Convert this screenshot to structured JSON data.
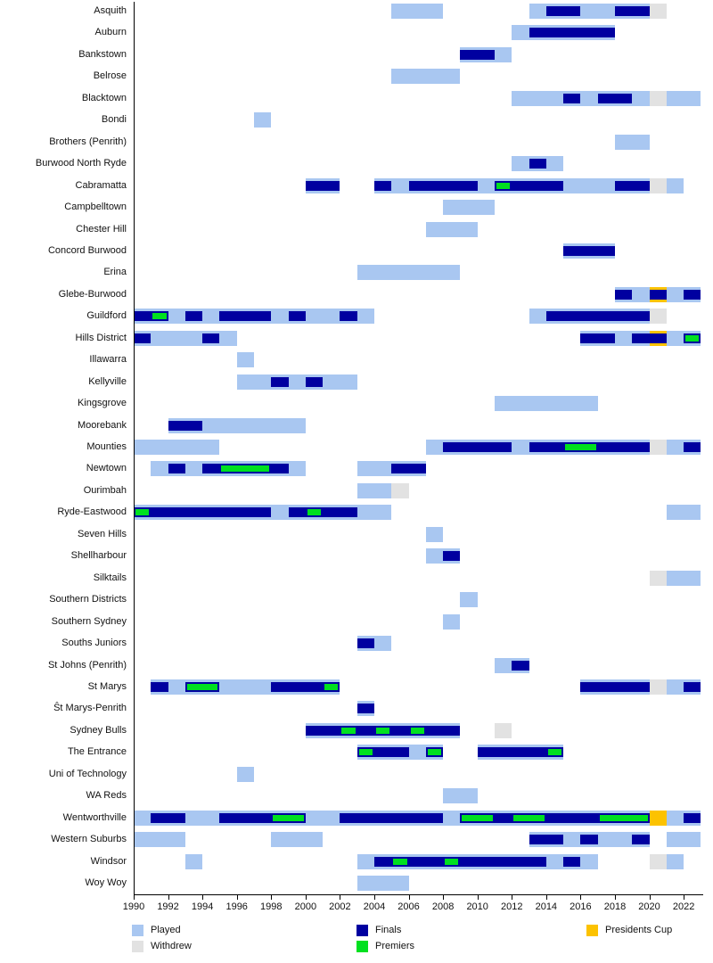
{
  "chart_data": {
    "type": "bar",
    "subtype": "gantt-participation-timeline",
    "title": "",
    "x_axis": {
      "start": 1990,
      "end": 2023,
      "ticks": [
        1990,
        1992,
        1994,
        1996,
        1998,
        2000,
        2002,
        2004,
        2006,
        2008,
        2010,
        2012,
        2014,
        2016,
        2018,
        2020,
        2022
      ]
    },
    "colors": {
      "played": "#a9c7f1",
      "finals": "#0000a0",
      "premiers": "#00e020",
      "withdrew": "#e2e2e2",
      "presidents_cup": "#fcc200",
      "axis": "#000000",
      "label_text": "#111111"
    },
    "legend": [
      {
        "label": "Played",
        "status": "played",
        "col": 0,
        "row": 0
      },
      {
        "label": "Withdrew",
        "status": "withdrew",
        "col": 0,
        "row": 1
      },
      {
        "label": "Finals",
        "status": "finals",
        "col": 1,
        "row": 0
      },
      {
        "label": "Premiers",
        "status": "premiers",
        "col": 1,
        "row": 1
      },
      {
        "label": "Presidents Cup",
        "status": "presidents_cup",
        "col": 2,
        "row": 0
      }
    ],
    "teams": [
      {
        "name": "Asquith",
        "segments": [
          [
            2005,
            3,
            "played"
          ],
          [
            2013,
            1,
            "played"
          ],
          [
            2014,
            2,
            "finals"
          ],
          [
            2016,
            2,
            "played"
          ],
          [
            2018,
            2,
            "finals"
          ],
          [
            2020,
            1,
            "withdrew"
          ]
        ]
      },
      {
        "name": "Auburn",
        "segments": [
          [
            2012,
            1,
            "played"
          ],
          [
            2013,
            5,
            "finals"
          ]
        ]
      },
      {
        "name": "Bankstown",
        "segments": [
          [
            2009,
            2,
            "finals"
          ],
          [
            2011,
            1,
            "played"
          ]
        ]
      },
      {
        "name": "Belrose",
        "segments": [
          [
            2005,
            4,
            "played"
          ]
        ]
      },
      {
        "name": "Blacktown",
        "segments": [
          [
            2012,
            3,
            "played"
          ],
          [
            2015,
            1,
            "finals"
          ],
          [
            2016,
            1,
            "played"
          ],
          [
            2017,
            2,
            "finals"
          ],
          [
            2019,
            1,
            "played"
          ],
          [
            2020,
            1,
            "withdrew"
          ],
          [
            2021,
            2,
            "played"
          ]
        ]
      },
      {
        "name": "Bondi",
        "segments": [
          [
            1997,
            1,
            "played"
          ]
        ]
      },
      {
        "name": "Brothers (Penrith)",
        "segments": [
          [
            2018,
            2,
            "played"
          ]
        ]
      },
      {
        "name": "Burwood North Ryde",
        "segments": [
          [
            2012,
            1,
            "played"
          ],
          [
            2013,
            1,
            "finals"
          ],
          [
            2014,
            1,
            "played"
          ]
        ]
      },
      {
        "name": "Cabramatta",
        "segments": [
          [
            2000,
            2,
            "finals"
          ],
          [
            2004,
            1,
            "finals"
          ],
          [
            2005,
            1,
            "played"
          ],
          [
            2006,
            4,
            "finals"
          ],
          [
            2010,
            1,
            "played"
          ],
          [
            2011,
            1,
            "premiers"
          ],
          [
            2012,
            3,
            "finals"
          ],
          [
            2015,
            3,
            "played"
          ],
          [
            2018,
            2,
            "finals"
          ],
          [
            2020,
            1,
            "withdrew"
          ],
          [
            2021,
            1,
            "played"
          ]
        ]
      },
      {
        "name": "Campbelltown",
        "segments": [
          [
            2008,
            3,
            "played"
          ]
        ]
      },
      {
        "name": "Chester Hill",
        "segments": [
          [
            2007,
            3,
            "played"
          ]
        ]
      },
      {
        "name": "Concord Burwood",
        "segments": [
          [
            2015,
            3,
            "finals"
          ]
        ]
      },
      {
        "name": "Erina",
        "segments": [
          [
            2003,
            6,
            "played"
          ]
        ]
      },
      {
        "name": "Glebe-Burwood",
        "segments": [
          [
            2018,
            1,
            "finals"
          ],
          [
            2019,
            1,
            "played"
          ],
          [
            2020,
            1,
            "presidents_cup_finals"
          ],
          [
            2021,
            1,
            "played"
          ],
          [
            2022,
            1,
            "finals"
          ]
        ]
      },
      {
        "name": "Guildford",
        "segments": [
          [
            1990,
            1,
            "finals"
          ],
          [
            1991,
            1,
            "premiers"
          ],
          [
            1992,
            1,
            "played"
          ],
          [
            1993,
            1,
            "finals"
          ],
          [
            1994,
            1,
            "played"
          ],
          [
            1995,
            3,
            "finals"
          ],
          [
            1998,
            1,
            "played"
          ],
          [
            1999,
            1,
            "finals"
          ],
          [
            2000,
            2,
            "played"
          ],
          [
            2002,
            1,
            "finals"
          ],
          [
            2003,
            1,
            "played"
          ],
          [
            2013,
            1,
            "played"
          ],
          [
            2014,
            6,
            "finals"
          ],
          [
            2020,
            1,
            "withdrew"
          ]
        ]
      },
      {
        "name": "Hills District",
        "segments": [
          [
            1990,
            1,
            "finals"
          ],
          [
            1991,
            3,
            "played"
          ],
          [
            1994,
            1,
            "finals"
          ],
          [
            1995,
            1,
            "played"
          ],
          [
            2016,
            2,
            "finals"
          ],
          [
            2018,
            1,
            "played"
          ],
          [
            2019,
            1,
            "finals"
          ],
          [
            2020,
            1,
            "presidents_cup_finals"
          ],
          [
            2021,
            1,
            "played"
          ],
          [
            2022,
            1,
            "premiers"
          ]
        ]
      },
      {
        "name": "Illawarra",
        "segments": [
          [
            1996,
            1,
            "played"
          ]
        ]
      },
      {
        "name": "Kellyville",
        "segments": [
          [
            1996,
            2,
            "played"
          ],
          [
            1998,
            1,
            "finals"
          ],
          [
            1999,
            1,
            "played"
          ],
          [
            2000,
            1,
            "finals"
          ],
          [
            2001,
            2,
            "played"
          ]
        ]
      },
      {
        "name": "Kingsgrove",
        "segments": [
          [
            2011,
            6,
            "played"
          ]
        ]
      },
      {
        "name": "Moorebank",
        "segments": [
          [
            1992,
            2,
            "finals"
          ],
          [
            1994,
            6,
            "played"
          ]
        ]
      },
      {
        "name": "Mounties",
        "segments": [
          [
            1990,
            5,
            "played"
          ],
          [
            2007,
            1,
            "played"
          ],
          [
            2008,
            4,
            "finals"
          ],
          [
            2012,
            1,
            "played"
          ],
          [
            2013,
            2,
            "finals"
          ],
          [
            2015,
            2,
            "premiers"
          ],
          [
            2017,
            3,
            "finals"
          ],
          [
            2020,
            1,
            "withdrew"
          ],
          [
            2021,
            1,
            "played"
          ],
          [
            2022,
            1,
            "finals"
          ]
        ]
      },
      {
        "name": "Newtown",
        "segments": [
          [
            1991,
            1,
            "played"
          ],
          [
            1992,
            1,
            "finals"
          ],
          [
            1993,
            1,
            "played"
          ],
          [
            1994,
            1,
            "finals"
          ],
          [
            1995,
            3,
            "premiers"
          ],
          [
            1998,
            1,
            "finals"
          ],
          [
            1999,
            1,
            "played"
          ],
          [
            2003,
            2,
            "played"
          ],
          [
            2005,
            2,
            "finals"
          ]
        ]
      },
      {
        "name": "Ourimbah",
        "segments": [
          [
            2003,
            2,
            "played"
          ],
          [
            2005,
            1,
            "withdrew"
          ]
        ]
      },
      {
        "name": "Ryde-Eastwood",
        "segments": [
          [
            1990,
            1,
            "premiers"
          ],
          [
            1991,
            7,
            "finals"
          ],
          [
            1998,
            1,
            "played"
          ],
          [
            1999,
            1,
            "finals"
          ],
          [
            2000,
            1,
            "premiers"
          ],
          [
            2001,
            2,
            "finals"
          ],
          [
            2003,
            2,
            "played"
          ],
          [
            2021,
            2,
            "played"
          ]
        ]
      },
      {
        "name": "Seven Hills",
        "segments": [
          [
            2007,
            1,
            "played"
          ]
        ]
      },
      {
        "name": "Shellharbour",
        "segments": [
          [
            2007,
            1,
            "played"
          ],
          [
            2008,
            1,
            "finals"
          ]
        ]
      },
      {
        "name": "Silktails",
        "segments": [
          [
            2020,
            1,
            "withdrew"
          ],
          [
            2021,
            2,
            "played"
          ]
        ]
      },
      {
        "name": "Southern Districts",
        "segments": [
          [
            2009,
            1,
            "played"
          ]
        ]
      },
      {
        "name": "Southern Sydney",
        "segments": [
          [
            2008,
            1,
            "played"
          ]
        ]
      },
      {
        "name": "Souths Juniors",
        "segments": [
          [
            2003,
            1,
            "finals"
          ],
          [
            2004,
            1,
            "played"
          ]
        ]
      },
      {
        "name": "St Johns (Penrith)",
        "segments": [
          [
            2011,
            1,
            "played"
          ],
          [
            2012,
            1,
            "finals"
          ]
        ]
      },
      {
        "name": "St Marys",
        "segments": [
          [
            1991,
            1,
            "finals"
          ],
          [
            1992,
            1,
            "played"
          ],
          [
            1993,
            2,
            "premiers"
          ],
          [
            1995,
            3,
            "played"
          ],
          [
            1998,
            3,
            "finals"
          ],
          [
            2001,
            1,
            "premiers"
          ],
          [
            2016,
            4,
            "finals"
          ],
          [
            2020,
            1,
            "withdrew"
          ],
          [
            2021,
            1,
            "played"
          ],
          [
            2022,
            1,
            "finals"
          ]
        ]
      },
      {
        "name": "Ŝt Marys-Penrith",
        "segments": [
          [
            2003,
            1,
            "finals"
          ]
        ]
      },
      {
        "name": "Sydney Bulls",
        "segments": [
          [
            2000,
            2,
            "finals"
          ],
          [
            2002,
            1,
            "premiers"
          ],
          [
            2003,
            1,
            "finals"
          ],
          [
            2004,
            1,
            "premiers"
          ],
          [
            2005,
            1,
            "finals"
          ],
          [
            2006,
            1,
            "premiers"
          ],
          [
            2007,
            2,
            "finals"
          ],
          [
            2011,
            1,
            "withdrew"
          ]
        ]
      },
      {
        "name": "The Entrance",
        "segments": [
          [
            2003,
            1,
            "premiers"
          ],
          [
            2004,
            2,
            "finals"
          ],
          [
            2006,
            1,
            "played"
          ],
          [
            2007,
            1,
            "premiers"
          ],
          [
            2010,
            4,
            "finals"
          ],
          [
            2014,
            1,
            "premiers"
          ]
        ]
      },
      {
        "name": "Uni of Technology",
        "segments": [
          [
            1996,
            1,
            "played"
          ]
        ]
      },
      {
        "name": "WA Reds",
        "segments": [
          [
            2008,
            2,
            "played"
          ]
        ]
      },
      {
        "name": "Wentworthville",
        "segments": [
          [
            1990,
            1,
            "played"
          ],
          [
            1991,
            2,
            "finals"
          ],
          [
            1993,
            2,
            "played"
          ],
          [
            1995,
            3,
            "finals"
          ],
          [
            1998,
            2,
            "premiers"
          ],
          [
            2000,
            2,
            "played"
          ],
          [
            2002,
            6,
            "finals"
          ],
          [
            2008,
            1,
            "played"
          ],
          [
            2009,
            2,
            "premiers"
          ],
          [
            2011,
            1,
            "finals"
          ],
          [
            2012,
            2,
            "premiers"
          ],
          [
            2014,
            3,
            "finals"
          ],
          [
            2017,
            3,
            "premiers"
          ],
          [
            2020,
            1,
            "presidents_cup"
          ],
          [
            2021,
            1,
            "played"
          ],
          [
            2022,
            1,
            "finals"
          ]
        ]
      },
      {
        "name": "Western Suburbs",
        "segments": [
          [
            1990,
            3,
            "played"
          ],
          [
            1998,
            3,
            "played"
          ],
          [
            2013,
            2,
            "finals"
          ],
          [
            2015,
            1,
            "played"
          ],
          [
            2016,
            1,
            "finals"
          ],
          [
            2017,
            2,
            "played"
          ],
          [
            2019,
            1,
            "finals"
          ],
          [
            2021,
            2,
            "played"
          ]
        ]
      },
      {
        "name": "Windsor",
        "segments": [
          [
            1993,
            1,
            "played"
          ],
          [
            2003,
            1,
            "played"
          ],
          [
            2004,
            1,
            "finals"
          ],
          [
            2005,
            1,
            "premiers"
          ],
          [
            2006,
            2,
            "finals"
          ],
          [
            2008,
            1,
            "premiers"
          ],
          [
            2009,
            5,
            "finals"
          ],
          [
            2014,
            1,
            "played"
          ],
          [
            2015,
            1,
            "finals"
          ],
          [
            2016,
            1,
            "played"
          ],
          [
            2020,
            1,
            "withdrew"
          ],
          [
            2021,
            1,
            "played"
          ]
        ]
      },
      {
        "name": "Woy Woy",
        "segments": [
          [
            2003,
            3,
            "played"
          ]
        ]
      }
    ]
  }
}
